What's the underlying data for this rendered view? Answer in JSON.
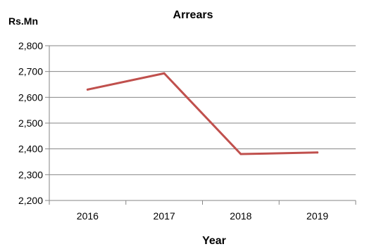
{
  "chart_data": {
    "type": "line",
    "title": "Arrears",
    "ylabel": "Rs.Mn",
    "xlabel": "Year",
    "categories": [
      "2016",
      "2017",
      "2018",
      "2019"
    ],
    "series": [
      {
        "values": [
          2630,
          2693,
          2380,
          2386
        ],
        "color": "#C0504D"
      }
    ],
    "ylim": [
      2200,
      2800
    ],
    "yticks": [
      2200,
      2300,
      2400,
      2500,
      2600,
      2700,
      2800
    ],
    "ytick_labels": [
      "2,200",
      "2,300",
      "2,400",
      "2,500",
      "2,600",
      "2,700",
      "2,800"
    ],
    "grid": true,
    "legend": "none"
  }
}
